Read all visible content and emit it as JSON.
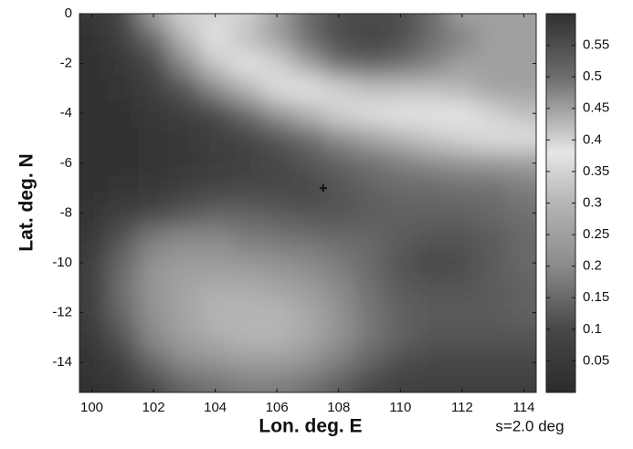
{
  "chart_data": {
    "type": "heatmap",
    "x_label": "Lon. deg. E",
    "y_label": "Lat. deg. N",
    "annotation": "s=2.0 deg",
    "x": [
      100,
      101,
      102,
      103,
      104,
      105,
      106,
      107,
      108,
      109,
      110,
      111,
      112,
      113,
      114
    ],
    "y": [
      0,
      -1,
      -2,
      -3,
      -4,
      -5,
      -6,
      -7,
      -8,
      -9,
      -10,
      -11,
      -12,
      -13,
      -14,
      -15
    ],
    "values": [
      [
        0.05,
        0.1,
        0.25,
        0.35,
        0.35,
        0.4,
        0.45,
        0.5,
        0.55,
        0.55,
        0.55,
        0.5,
        0.45,
        0.45,
        0.45
      ],
      [
        0.03,
        0.07,
        0.15,
        0.3,
        0.38,
        0.42,
        0.45,
        0.5,
        0.55,
        0.57,
        0.55,
        0.5,
        0.48,
        0.45,
        0.45
      ],
      [
        0.02,
        0.05,
        0.1,
        0.2,
        0.33,
        0.38,
        0.4,
        0.45,
        0.5,
        0.52,
        0.5,
        0.48,
        0.45,
        0.45,
        0.45
      ],
      [
        0.02,
        0.04,
        0.07,
        0.12,
        0.2,
        0.3,
        0.37,
        0.38,
        0.4,
        0.42,
        0.42,
        0.42,
        0.43,
        0.45,
        0.45
      ],
      [
        0.02,
        0.03,
        0.05,
        0.08,
        0.1,
        0.15,
        0.22,
        0.3,
        0.35,
        0.37,
        0.38,
        0.38,
        0.38,
        0.4,
        0.42
      ],
      [
        0.02,
        0.03,
        0.04,
        0.05,
        0.07,
        0.09,
        0.12,
        0.15,
        0.2,
        0.25,
        0.3,
        0.33,
        0.35,
        0.37,
        0.37
      ],
      [
        0.03,
        0.03,
        0.04,
        0.05,
        0.06,
        0.08,
        0.1,
        0.12,
        0.14,
        0.16,
        0.18,
        0.2,
        0.22,
        0.23,
        0.24
      ],
      [
        0.03,
        0.04,
        0.05,
        0.07,
        0.09,
        0.1,
        0.1,
        0.1,
        0.12,
        0.14,
        0.15,
        0.15,
        0.16,
        0.16,
        0.18
      ],
      [
        0.04,
        0.07,
        0.1,
        0.12,
        0.14,
        0.14,
        0.13,
        0.12,
        0.12,
        0.13,
        0.14,
        0.14,
        0.14,
        0.15,
        0.16
      ],
      [
        0.05,
        0.12,
        0.18,
        0.2,
        0.2,
        0.18,
        0.17,
        0.16,
        0.15,
        0.15,
        0.13,
        0.12,
        0.12,
        0.13,
        0.15
      ],
      [
        0.06,
        0.15,
        0.22,
        0.24,
        0.24,
        0.23,
        0.22,
        0.2,
        0.18,
        0.15,
        0.12,
        0.1,
        0.11,
        0.13,
        0.15
      ],
      [
        0.06,
        0.16,
        0.23,
        0.26,
        0.28,
        0.28,
        0.26,
        0.24,
        0.2,
        0.16,
        0.13,
        0.12,
        0.12,
        0.13,
        0.14
      ],
      [
        0.06,
        0.15,
        0.22,
        0.26,
        0.3,
        0.3,
        0.3,
        0.27,
        0.22,
        0.17,
        0.14,
        0.13,
        0.13,
        0.13,
        0.14
      ],
      [
        0.05,
        0.12,
        0.2,
        0.25,
        0.28,
        0.3,
        0.3,
        0.27,
        0.22,
        0.17,
        0.14,
        0.12,
        0.12,
        0.12,
        0.12
      ],
      [
        0.04,
        0.08,
        0.15,
        0.2,
        0.22,
        0.24,
        0.24,
        0.22,
        0.18,
        0.14,
        0.11,
        0.1,
        0.1,
        0.1,
        0.1
      ],
      [
        0.03,
        0.05,
        0.1,
        0.14,
        0.16,
        0.18,
        0.18,
        0.16,
        0.13,
        0.1,
        0.08,
        0.07,
        0.07,
        0.07,
        0.07
      ]
    ],
    "marker": {
      "x": 107.5,
      "y": -7
    },
    "xlim": [
      99.6,
      114.4
    ],
    "xticks": [
      100,
      102,
      104,
      106,
      108,
      110,
      112,
      114
    ],
    "ylim": [
      -15.2,
      0
    ],
    "yticks": [
      -14,
      -12,
      -10,
      -8,
      -6,
      -4,
      -2,
      0
    ],
    "clim": [
      0,
      0.6
    ],
    "cticks": [
      0.05,
      0.1,
      0.15,
      0.2,
      0.25,
      0.3,
      0.35,
      0.4,
      0.45,
      0.5,
      0.55
    ],
    "colormap": [
      {
        "value": 0,
        "color": "#2b2b2b"
      },
      {
        "value": 0.1,
        "color": "#474747"
      },
      {
        "value": 0.2,
        "color": "#8a8a8a"
      },
      {
        "value": 0.3,
        "color": "#b5b5b5"
      },
      {
        "value": 0.38,
        "color": "#e6e6e6"
      },
      {
        "value": 0.45,
        "color": "#a0a0a0"
      },
      {
        "value": 0.5,
        "color": "#6c6c6c"
      },
      {
        "value": 0.6,
        "color": "#303030"
      }
    ]
  }
}
